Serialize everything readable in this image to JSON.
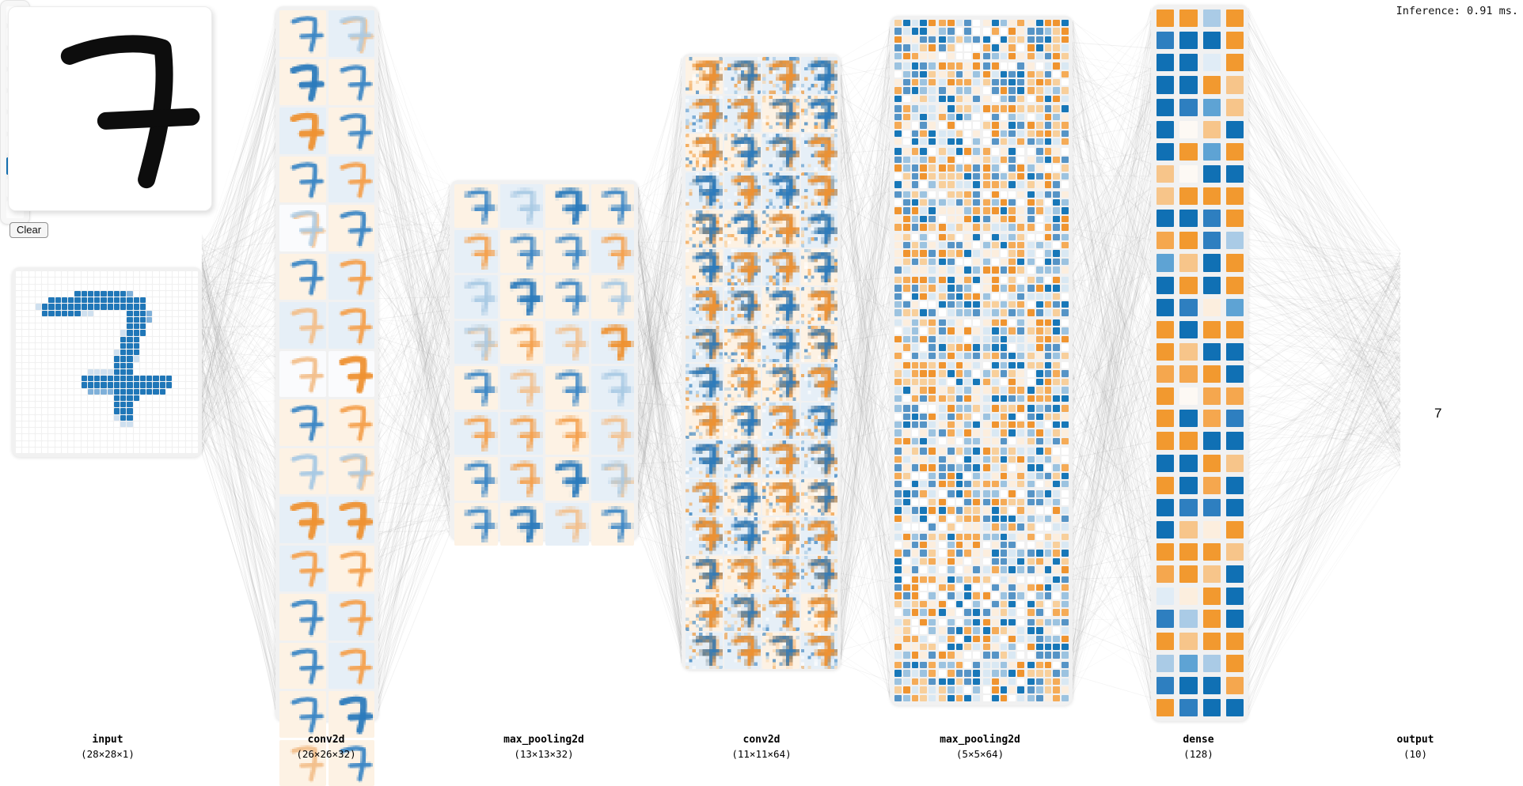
{
  "inference_label": "Inference: 0.91 ms.",
  "clear_button": "Clear",
  "drawn_digit": "7",
  "layers": [
    {
      "name": "input",
      "dims": "(28×28×1)"
    },
    {
      "name": "conv2d",
      "dims": "(26×26×32)"
    },
    {
      "name": "max_pooling2d",
      "dims": "(13×13×32)"
    },
    {
      "name": "conv2d",
      "dims": "(11×11×64)"
    },
    {
      "name": "max_pooling2d",
      "dims": "(5×5×64)"
    },
    {
      "name": "dense",
      "dims": "(128)"
    },
    {
      "name": "output",
      "dims": "(10)"
    }
  ],
  "input_grid": {
    "rows": [
      "............................",
      "............................",
      "............................",
      ".........bbbbbbbbl..........",
      ".....bbbbbbbbbbbbbbb........",
      "...pbbbbbbbbbbbbbbbb........",
      "....bbbbbbpp.....bbbl.......",
      ".................bbbl.......",
      ".................bbb........",
      "................pbbb........",
      "................bbb.........",
      "................bbb.........",
      "...............pbbb.........",
      "...............bbbp.........",
      "...............bbb..........",
      "...........ppppbbb..........",
      "..........bbbbbbbbbbbbbb....",
      "..........bbbbbbbbbbbbbb....",
      "...........llllbbbbbbbb.....",
      "...............bbbb.........",
      "...............bbb..........",
      "...............bbb..........",
      "...............pbb..........",
      "................pp..........",
      "............................",
      "............................",
      "............................",
      "............................"
    ]
  },
  "conv1_maps": [
    "bc",
    "ml",
    "Bc",
    "bc",
    "Ol",
    "bc",
    "bc",
    "ol",
    "mw",
    "bc",
    "bc",
    "ol",
    "gl",
    "ol",
    "gw",
    "Ow",
    "bc",
    "oc",
    "fc",
    "mc",
    "Ol",
    "Ol",
    "ol",
    "oc",
    "bc",
    "ol",
    "bc",
    "ol",
    "bc",
    "Bc",
    "gc",
    "bc"
  ],
  "pool1_maps": [
    "bc",
    "fl",
    "Bc",
    "bc",
    "ol",
    "bc",
    "bc",
    "ol",
    "fl",
    "Bc",
    "bc",
    "fc",
    "ml",
    "oc",
    "gl",
    "Ol",
    "bc",
    "gl",
    "bc",
    "fl",
    "ol",
    "ol",
    "oc",
    "gl",
    "bc",
    "ol",
    "Bc",
    "ml",
    "bc",
    "Bc",
    "gl",
    "bc"
  ],
  "conv2_maps": "omoboombobmobobombobboobombomobmbomoobobbmomobomoboomoomomoomomo",
  "pool2_maps": "mbombmbombbobobmbmobobmbmbombmboombmbmommbobbombmobmbmboobmbmbbo",
  "dense_cells": "OOlObBBOBBwOBBOYBbLYBWYBBOLOYWBBYOOOBBbOoOblLYBOBOBOBbyLOBOOOYBBooOBOWooOBobOOBBBBOYOBoBBbbBBYyOOOOYoOYBwyOBblOBOYOOlLlObBBoObBB",
  "output": {
    "num_classes": 10,
    "predicted_index": 7,
    "predicted_label": "7"
  },
  "colors": {
    "input_palette": {
      "b": "#2077b8",
      "l": "#7fb0d9",
      "p": "#cfe0ef"
    },
    "map_stroke": {
      "b": "#3f88c5",
      "B": "#2b7abc",
      "o": "#f4a14f",
      "O": "#ee9132",
      "f": "#a9c9e4",
      "g": "#f2c08d"
    },
    "map_bg": {
      "c": "#fdf2e4",
      "l": "#e6eff7",
      "w": "#fafbfd"
    },
    "noise_palette": [
      "#2b7abc",
      "#f0942f",
      "#9cc3e0",
      "#f8cf9b",
      "#ffffff"
    ],
    "pool2_blues": [
      "#1777b8",
      "#5694c6",
      "#9cc3e0",
      "#d9e8f3"
    ],
    "pool2_oranges": [
      "#f0942f",
      "#f5ab57",
      "#f8cf9b",
      "#fceede"
    ],
    "dense_palette": {
      "O": "#f2992f",
      "o": "#f5a74e",
      "Y": "#f7c58a",
      "y": "#fceede",
      "W": "#fdf9f4",
      "B": "#1070b4",
      "b": "#2e7fc0",
      "L": "#5ea3d4",
      "l": "#aacbe6",
      "w": "#e0ecf6"
    },
    "predicted_cell": "#1672b4",
    "prediction_ring": "#c1332e",
    "digit_ink": "#0d0d0d",
    "connection": "#7a7a7a"
  }
}
